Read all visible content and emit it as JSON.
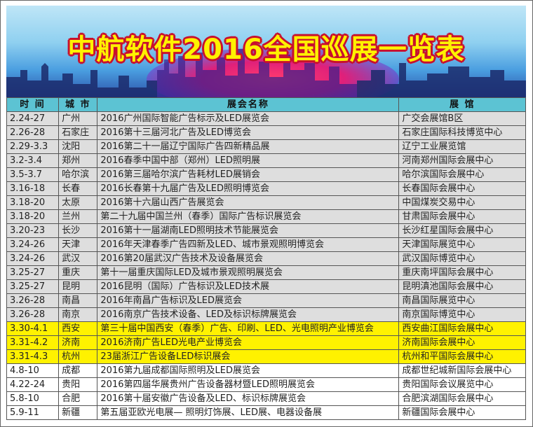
{
  "title": "中航软件2016全国巡展一览表",
  "colors": {
    "header": "#5cc3d3",
    "highlight": "#fff200",
    "gray_row": "#dedede",
    "title_text": "#fff200",
    "title_outline": "#c8102e"
  },
  "headers": [
    "时 间",
    "城 市",
    "展会名称",
    "展 馆"
  ],
  "rows": [
    {
      "date": "2.24-27",
      "city": "广州",
      "name": "2016广州国际智能广告标示及LED展览会",
      "venue": "广交会展馆B区",
      "style": "gray"
    },
    {
      "date": "2.26-28",
      "city": "石家庄",
      "name": "2016第十三届河北广告及LED博览会",
      "venue": "石家庄国际科技博览中心",
      "style": "gray"
    },
    {
      "date": "2.29-3.3",
      "city": "沈阳",
      "name": "2016第二十一届辽宁国际广告四新精品展",
      "venue": "辽宁工业展览馆",
      "style": "gray"
    },
    {
      "date": "3.2-3.4",
      "city": "郑州",
      "name": "2016春季中国中部（郑州）LED照明展",
      "venue": "河南郑州国际会展中心",
      "style": "gray"
    },
    {
      "date": "3.5-3.7",
      "city": "哈尔滨",
      "name": "2016第三届哈尔滨广告耗材LED展销会",
      "venue": "哈尔滨国际会展中心",
      "style": "gray"
    },
    {
      "date": "3.16-18",
      "city": "长春",
      "name": "2016长春第十九届广告及LED照明博览会",
      "venue": "长春国际会展中心",
      "style": "gray"
    },
    {
      "date": "3.18-20",
      "city": "太原",
      "name": "2016第十六届山西广告展览会",
      "venue": "中国煤炭交易中心",
      "style": "gray"
    },
    {
      "date": "3.18-20",
      "city": "兰州",
      "name": "第二十九届中国兰州（春季）国际广告标识展览会",
      "venue": "甘肃国际会展中心",
      "style": "gray"
    },
    {
      "date": "3.20-23",
      "city": "长沙",
      "name": "2016第十一届湖南LED照明技术节能展览会",
      "venue": "长沙红星国际会展中心",
      "style": "gray"
    },
    {
      "date": "3.24-26",
      "city": "天津",
      "name": "2016年天津春季广告四新及LED、城市景观照明博览会",
      "venue": "天津国际展览中心",
      "style": "gray"
    },
    {
      "date": "3.24-26",
      "city": "武汉",
      "name": "2016第20届武汉广告技术及设备展览会",
      "venue": "武汉国际博览中心",
      "style": "gray"
    },
    {
      "date": "3.25-27",
      "city": "重庆",
      "name": "第十一届重庆国际LED及城市景观照明展览会",
      "venue": "重庆南坪国际会展中心",
      "style": "gray"
    },
    {
      "date": "3.25-27",
      "city": "昆明",
      "name": "2016昆明（国际）广告标识及LED技术展",
      "venue": "昆明滇池国际会展中心",
      "style": "gray"
    },
    {
      "date": "3.26-28",
      "city": "南昌",
      "name": "2016年南昌广告标识及LED展览会",
      "venue": "南昌国际展览中心",
      "style": "gray"
    },
    {
      "date": "3.26-28",
      "city": "南京",
      "name": "2016南京广告技术设备、LED及标识标牌展览会",
      "venue": "南京国际博览中心",
      "style": "gray"
    },
    {
      "date": "3.30-4.1",
      "city": "西安",
      "name": "第三十届中国西安（春季）广告、印刷、LED、光电照明产业博览会",
      "venue": "西安曲江国际会展中心",
      "style": "yellow"
    },
    {
      "date": "3.31-4.2",
      "city": "济南",
      "name": "2016济南广告LED光电产业博览会",
      "venue": "济南国际会展中心",
      "style": "yellow"
    },
    {
      "date": "3.31-4.3",
      "city": "杭州",
      "name": "23届浙江广告设备LED标识展会",
      "venue": "杭州和平国际会展中心",
      "style": "yellow"
    },
    {
      "date": "4.8-10",
      "city": "成都",
      "name": "2016第九届成都国际照明及LED展览会",
      "venue": "成都世纪城新国际会展中心",
      "style": "white"
    },
    {
      "date": "4.22-24",
      "city": "贵阳",
      "name": "2016第四届华展贵州广告设备器材暨LED照明展览会",
      "venue": "贵阳国际会议展览中心",
      "style": "white"
    },
    {
      "date": "5.8-10",
      "city": "合肥",
      "name": "2016第十届安徽广告设备及LED、标识标牌展览会",
      "venue": "合肥滨湖国际会展中心",
      "style": "white"
    },
    {
      "date": "5.9-11",
      "city": "新疆",
      "name": "第五届亚欧光电展— 照明灯饰展、LED展、电器设备展",
      "venue": "新疆国际会展中心",
      "style": "white"
    }
  ]
}
